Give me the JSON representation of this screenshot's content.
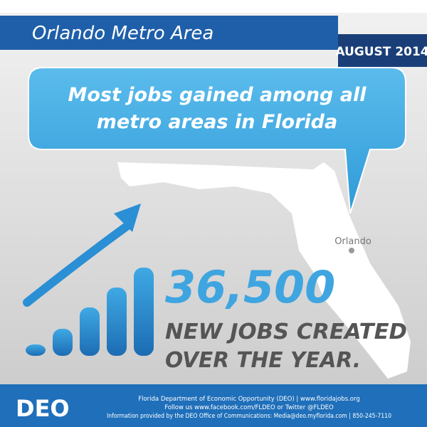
{
  "header": {
    "title": "Orlando Metro Area",
    "date": "AUGUST 2014"
  },
  "bubble": {
    "lines": [
      "Most jobs gained among all",
      "metro areas in Florida"
    ]
  },
  "map": {
    "city": "Orlando"
  },
  "stat": {
    "number": "36,500",
    "lines": [
      "NEW JOBS CREATED",
      "OVER THE YEAR."
    ]
  },
  "footer": {
    "logo": "DEO",
    "lines": [
      "Florida Department of Economic Opportunity (DEO) | www.floridajobs.org",
      "Follow us www.facebook.com/FLDEO or Twitter @FLDEO",
      "Information provided by the DEO Office of Communications: Media@deo.myflorida.com | 850-245-7110"
    ]
  }
}
